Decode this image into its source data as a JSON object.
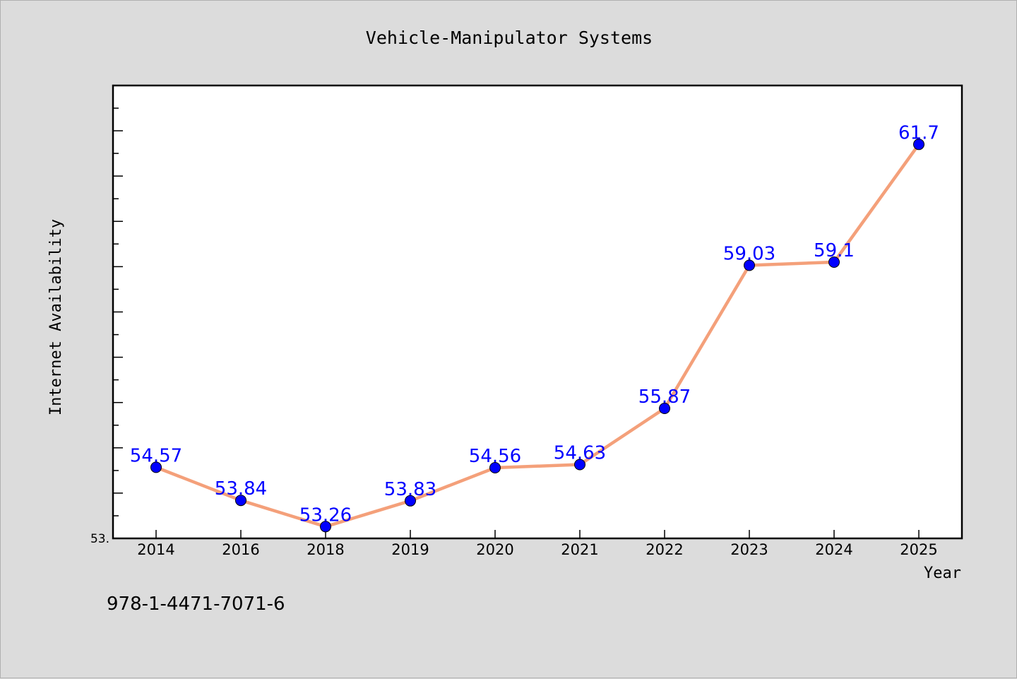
{
  "chart_data": {
    "type": "line",
    "title": "Vehicle-Manipulator Systems",
    "xlabel": "Year",
    "ylabel": "Internet Availability",
    "categories": [
      "2014",
      "2016",
      "2018",
      "2019",
      "2020",
      "2021",
      "2022",
      "2023",
      "2024",
      "2025"
    ],
    "series": [
      {
        "values": [
          54.57,
          53.84,
          53.26,
          53.83,
          54.56,
          54.63,
          55.87,
          59.03,
          59.1,
          61.7
        ],
        "labels": [
          "54.57",
          "53.84",
          "53.26",
          "53.83",
          "54.56",
          "54.63",
          "55.87",
          "59.03",
          "59.1",
          "61.7"
        ]
      }
    ],
    "ylim": [
      53.0,
      63.0
    ],
    "y_tick_labels": [
      "53."
    ],
    "grid": false,
    "line_color": "#f4a07a",
    "marker_color": "#0000ff",
    "label_color": "#0000ff"
  },
  "footer": {
    "isbn": "978-1-4471-7071-6"
  }
}
